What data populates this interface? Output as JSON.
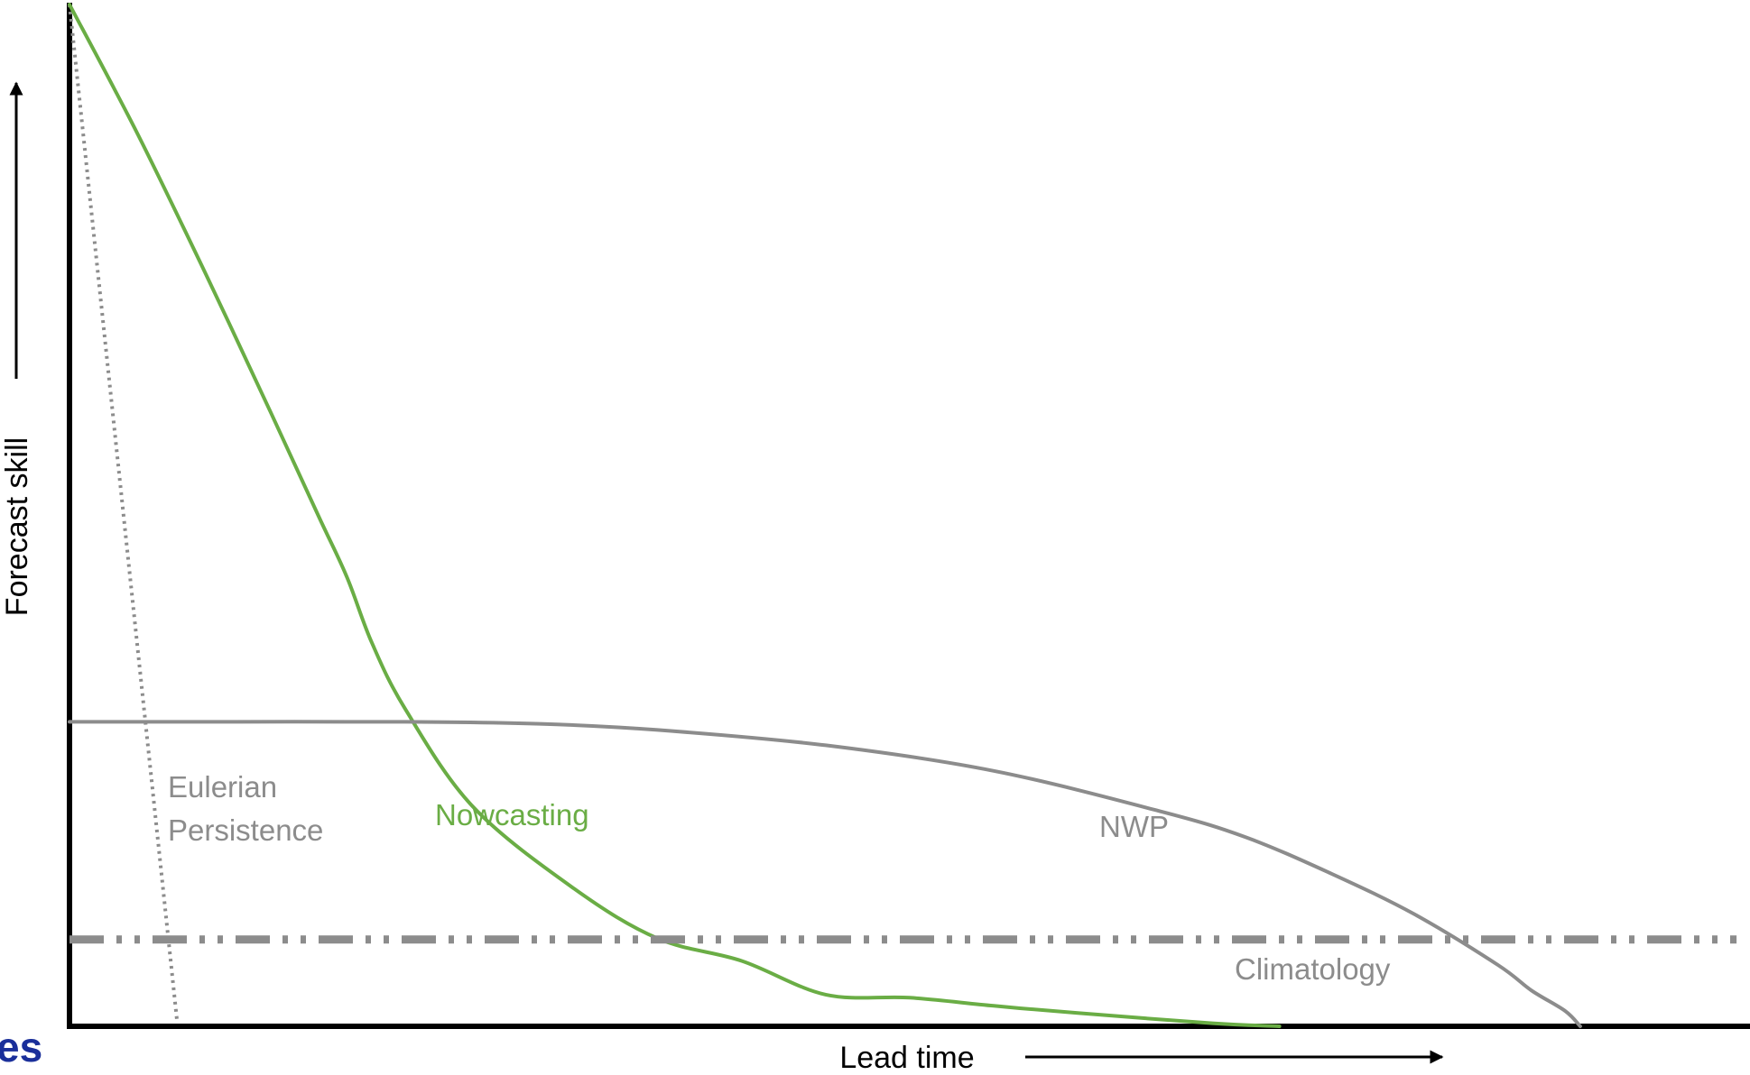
{
  "chart_data": {
    "type": "line",
    "title": "",
    "xlabel": "Lead time",
    "ylabel": "Forecast skill",
    "xlim": [
      0,
      100
    ],
    "ylim": [
      0,
      100
    ],
    "grid": false,
    "legend": "none",
    "series": [
      {
        "name": "Eulerian Persistence",
        "label_lines": [
          "Eulerian",
          "Persistence"
        ],
        "color": "#8c8c8c",
        "style": "dotted",
        "x": [
          0,
          6.4
        ],
        "y": [
          100,
          0.5
        ]
      },
      {
        "name": "Nowcasting",
        "color": "#6aad45",
        "style": "solid",
        "x": [
          0,
          4,
          8,
          12,
          14.8,
          16.5,
          18,
          20,
          24,
          30,
          35,
          40,
          45,
          50,
          55,
          60,
          68,
          72
        ],
        "y": [
          100,
          87.5,
          74,
          60,
          50,
          44,
          37.5,
          31,
          21.5,
          13.5,
          8.6,
          6.4,
          3.1,
          2.8,
          2,
          1.3,
          0.3,
          0
        ]
      },
      {
        "name": "NWP",
        "color": "#8c8c8c",
        "style": "solid",
        "x": [
          0,
          10,
          20,
          28,
          35,
          45,
          55,
          65,
          70,
          75,
          80,
          85,
          87,
          89,
          89.9
        ],
        "y": [
          29.8,
          29.8,
          29.8,
          29.6,
          29,
          27.5,
          25,
          21,
          18.5,
          15,
          11,
          6,
          3.5,
          1.5,
          0
        ]
      },
      {
        "name": "Climatology",
        "color": "#8c8c8c",
        "style": "dash-dot-dot",
        "x": [
          0,
          99.2
        ],
        "y": [
          8.5,
          8.5
        ]
      }
    ]
  },
  "colors": {
    "axis": "#000000",
    "grey": "#8c8c8c",
    "green": "#6aad45",
    "fragment": "#1a2f9a"
  },
  "fragment_text": "es"
}
